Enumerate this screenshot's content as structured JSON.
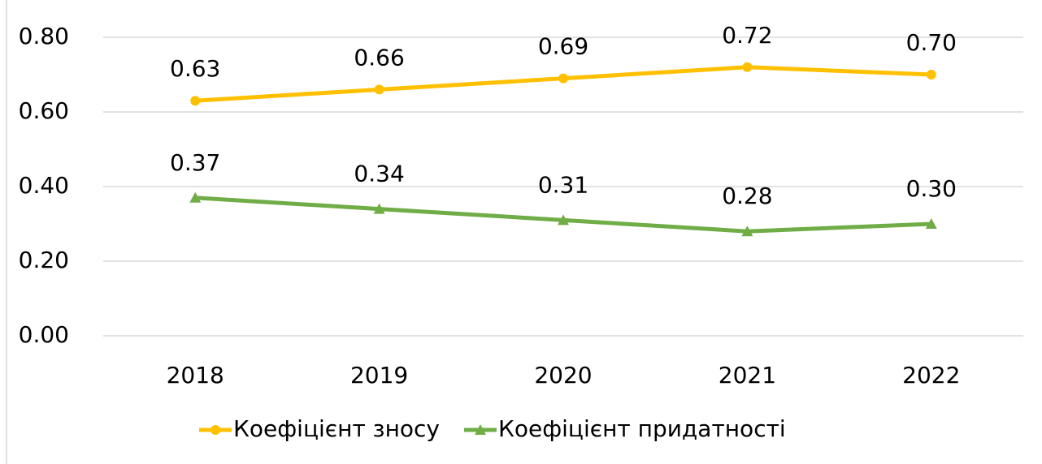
{
  "chart_data": {
    "type": "line",
    "categories": [
      "2018",
      "2019",
      "2020",
      "2021",
      "2022"
    ],
    "series": [
      {
        "name": "Коефіцієнт зносу",
        "color": "#ffc000",
        "marker": "circle",
        "values": [
          0.63,
          0.66,
          0.69,
          0.72,
          0.7
        ],
        "value_labels": [
          "0.63",
          "0.66",
          "0.69",
          "0.72",
          "0.70"
        ]
      },
      {
        "name": "Коефіцієнт придатності",
        "color": "#70ad47",
        "marker": "triangle",
        "values": [
          0.37,
          0.34,
          0.31,
          0.28,
          0.3
        ],
        "value_labels": [
          "0.37",
          "0.34",
          "0.31",
          "0.28",
          "0.30"
        ]
      }
    ],
    "ylim": [
      0,
      0.8
    ],
    "yticks": [
      {
        "value": 0,
        "label": "0.00"
      },
      {
        "value": 0.2,
        "label": "0.20"
      },
      {
        "value": 0.4,
        "label": "0.40"
      },
      {
        "value": 0.6,
        "label": "0.60"
      },
      {
        "value": 0.8,
        "label": "0.80"
      }
    ],
    "grid": true,
    "legend": "bottom"
  }
}
